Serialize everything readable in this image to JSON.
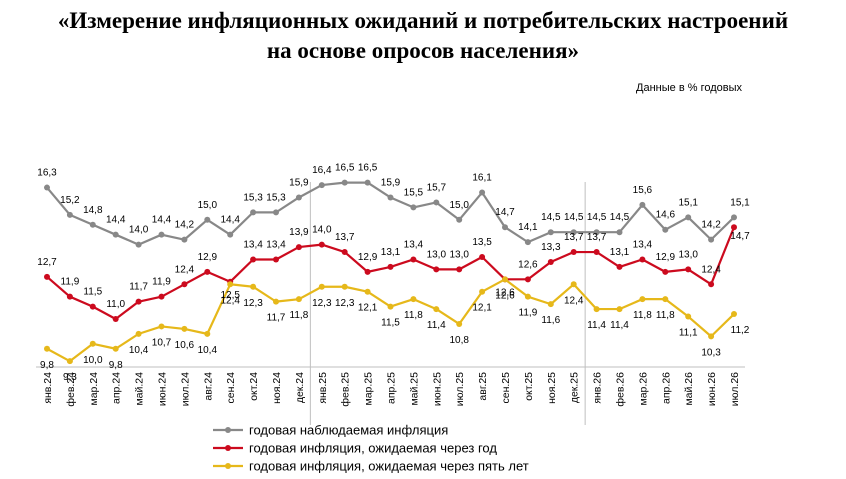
{
  "title_line1": "«Измерение инфляционных ожиданий и потребительских настроений",
  "title_line2": "на основе опросов населения»",
  "unit_note": "Данные в % годовых",
  "chart_data": {
    "type": "line",
    "categories": [
      "янв.24",
      "фев.24",
      "мар.24",
      "апр.24",
      "май.24",
      "июн.24",
      "июл.24",
      "авг.24",
      "сен.24",
      "окт.24",
      "ноя.24",
      "дек.24",
      "янв.25",
      "фев.25",
      "мар.25",
      "апр.25",
      "май.25",
      "июн.25",
      "июл.25",
      "авг.25",
      "сен.25",
      "окт.25",
      "ноя.25",
      "дек.25",
      "янв.26",
      "фев.26",
      "мар.26",
      "апр.26",
      "май.26",
      "июн.26",
      "июл.26"
    ],
    "series": [
      {
        "name": "годовая наблюдаемая инфляция",
        "color": "#888888",
        "label_pos": "above",
        "values": [
          16.3,
          15.2,
          14.8,
          14.4,
          14.0,
          14.4,
          14.2,
          15.0,
          14.4,
          15.3,
          15.3,
          15.9,
          16.4,
          16.5,
          16.5,
          15.9,
          15.5,
          15.7,
          15.0,
          16.1,
          14.7,
          14.1,
          14.5,
          14.5,
          14.5,
          14.5,
          15.6,
          14.6,
          15.1,
          14.2,
          15.1
        ]
      },
      {
        "name": "годовая инфляция,  ожидаемая через год",
        "color": "#cc0a1e",
        "label_pos": "mixed",
        "values": [
          12.7,
          11.9,
          11.5,
          11.0,
          11.7,
          11.9,
          12.4,
          12.9,
          12.5,
          13.4,
          13.4,
          13.9,
          14.0,
          13.7,
          12.9,
          13.1,
          13.4,
          13.0,
          13.0,
          13.5,
          12.6,
          12.6,
          13.3,
          13.7,
          13.7,
          13.1,
          13.4,
          12.9,
          13.0,
          12.4,
          14.7
        ]
      },
      {
        "name": "годовая инфляция,  ожидаемая через пять лет",
        "color": "#e6b81a",
        "label_pos": "below",
        "values": [
          9.8,
          9.3,
          10.0,
          9.8,
          10.4,
          10.7,
          10.6,
          10.4,
          12.4,
          12.3,
          11.7,
          11.8,
          12.3,
          12.3,
          12.1,
          11.5,
          11.8,
          11.4,
          10.8,
          12.1,
          12.6,
          11.9,
          11.6,
          12.4,
          11.4,
          11.4,
          11.8,
          11.8,
          11.1,
          10.3,
          11.2
        ]
      }
    ],
    "xlabel": "",
    "ylabel": "",
    "legend_position": "bottom-center",
    "grid": false
  }
}
